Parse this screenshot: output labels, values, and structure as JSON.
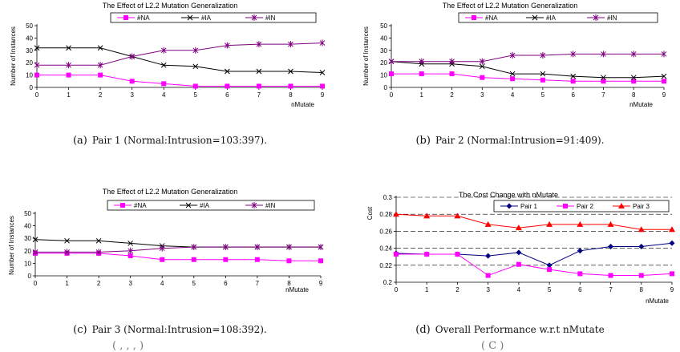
{
  "chart_data": [
    {
      "id": "a",
      "type": "line",
      "title": "The Effect of L2.2 Mutation Generalization",
      "xlabel": "nMutate",
      "ylabel": "Number of Instances",
      "x": [
        0,
        1,
        2,
        3,
        4,
        5,
        6,
        7,
        8,
        9
      ],
      "xticks": [
        "0",
        "1",
        "2",
        "3",
        "4",
        "5",
        "6",
        "7",
        "8",
        "9"
      ],
      "ylim": [
        0,
        50
      ],
      "yticks": [
        "0",
        "10",
        "20",
        "30",
        "40",
        "50"
      ],
      "series": [
        {
          "name": "#NA",
          "color": "#ff00ff",
          "marker": "square",
          "values": [
            10,
            10,
            10,
            5,
            3,
            1,
            1,
            1,
            1,
            1
          ]
        },
        {
          "name": "#IA",
          "color": "#000000",
          "marker": "x",
          "values": [
            32,
            32,
            32,
            25,
            18,
            17,
            13,
            13,
            13,
            12
          ]
        },
        {
          "name": "#IN",
          "color": "#800080",
          "marker": "asterisk",
          "values": [
            18,
            18,
            18,
            25,
            30,
            30,
            34,
            35,
            35,
            36
          ]
        }
      ]
    },
    {
      "id": "b",
      "type": "line",
      "title": "The Effect of L2.2 Mutation Generalization",
      "xlabel": "nMutate",
      "ylabel": "Number of Instances",
      "x": [
        0,
        1,
        2,
        3,
        4,
        5,
        6,
        7,
        8,
        9
      ],
      "xticks": [
        "0",
        "1",
        "2",
        "3",
        "4",
        "5",
        "6",
        "7",
        "8",
        "9"
      ],
      "ylim": [
        0,
        50
      ],
      "yticks": [
        "0",
        "10",
        "20",
        "30",
        "40",
        "50"
      ],
      "series": [
        {
          "name": "#NA",
          "color": "#ff00ff",
          "marker": "square",
          "values": [
            11,
            11,
            11,
            8,
            7,
            6,
            5,
            5,
            5,
            5
          ]
        },
        {
          "name": "#IA",
          "color": "#000000",
          "marker": "x",
          "values": [
            21,
            19,
            19,
            17,
            11,
            11,
            9,
            8,
            8,
            9
          ]
        },
        {
          "name": "#IN",
          "color": "#800080",
          "marker": "asterisk",
          "values": [
            21,
            21,
            21,
            21,
            26,
            26,
            27,
            27,
            27,
            27
          ]
        }
      ]
    },
    {
      "id": "c",
      "type": "line",
      "title": "The Effect of L2.2 Mutation Generalization",
      "xlabel": "nMutate",
      "ylabel": "Number of Instances",
      "x": [
        0,
        1,
        2,
        3,
        4,
        5,
        6,
        7,
        8,
        9
      ],
      "xticks": [
        "0",
        "1",
        "2",
        "3",
        "4",
        "5",
        "6",
        "7",
        "8",
        "9"
      ],
      "ylim": [
        0,
        50
      ],
      "yticks": [
        "0",
        "10",
        "20",
        "30",
        "40",
        "50"
      ],
      "series": [
        {
          "name": "#NA",
          "color": "#ff00ff",
          "marker": "square",
          "values": [
            18,
            18,
            18,
            16,
            13,
            13,
            13,
            13,
            12,
            12
          ]
        },
        {
          "name": "#IA",
          "color": "#000000",
          "marker": "x",
          "values": [
            29,
            28,
            28,
            26,
            24,
            23,
            23,
            23,
            23,
            23
          ]
        },
        {
          "name": "#IN",
          "color": "#800080",
          "marker": "asterisk",
          "values": [
            19,
            19,
            19,
            20,
            22,
            23,
            23,
            23,
            23,
            23
          ]
        }
      ]
    },
    {
      "id": "d",
      "type": "line",
      "title": "The Cost Change with nMutate",
      "xlabel": "nMutate",
      "ylabel": "Cost",
      "x": [
        0,
        1,
        2,
        3,
        4,
        5,
        6,
        7,
        8,
        9
      ],
      "xticks": [
        "0",
        "1",
        "2",
        "3",
        "4",
        "5",
        "6",
        "7",
        "8",
        "9"
      ],
      "ylim": [
        0.2,
        0.3
      ],
      "yticks": [
        "0.2",
        "0.22",
        "0.24",
        "0.26",
        "0.28",
        "0.3"
      ],
      "grid": "dashed horizontal",
      "series": [
        {
          "name": "Pair 1",
          "color": "#000080",
          "marker": "diamond",
          "values": [
            0.234,
            0.233,
            0.233,
            0.231,
            0.235,
            0.22,
            0.237,
            0.242,
            0.242,
            0.246
          ]
        },
        {
          "name": "Pair 2",
          "color": "#ff00ff",
          "marker": "square",
          "values": [
            0.233,
            0.233,
            0.233,
            0.208,
            0.221,
            0.215,
            0.21,
            0.208,
            0.208,
            0.21
          ]
        },
        {
          "name": "Pair 3",
          "color": "#ff0000",
          "marker": "triangle",
          "values": [
            0.28,
            0.278,
            0.278,
            0.268,
            0.264,
            0.268,
            0.268,
            0.268,
            0.262,
            0.262
          ]
        }
      ]
    }
  ],
  "captions": {
    "a": {
      "tag": "(a)",
      "text": "Pair 1 (Normal:Intrusion=103:397)."
    },
    "b": {
      "tag": "(b)",
      "text": "Pair 2 (Normal:Intrusion=91:409)."
    },
    "c": {
      "tag": "(c)",
      "text": "Pair 3 (Normal:Intrusion=108:392)."
    },
    "d": {
      "tag": "(d)",
      "text": "Overall Performance w.r.t nMutate"
    }
  },
  "footer_fragment_left": "(         ,   ,   ,   )",
  "footer_fragment_right": "(  C     )"
}
